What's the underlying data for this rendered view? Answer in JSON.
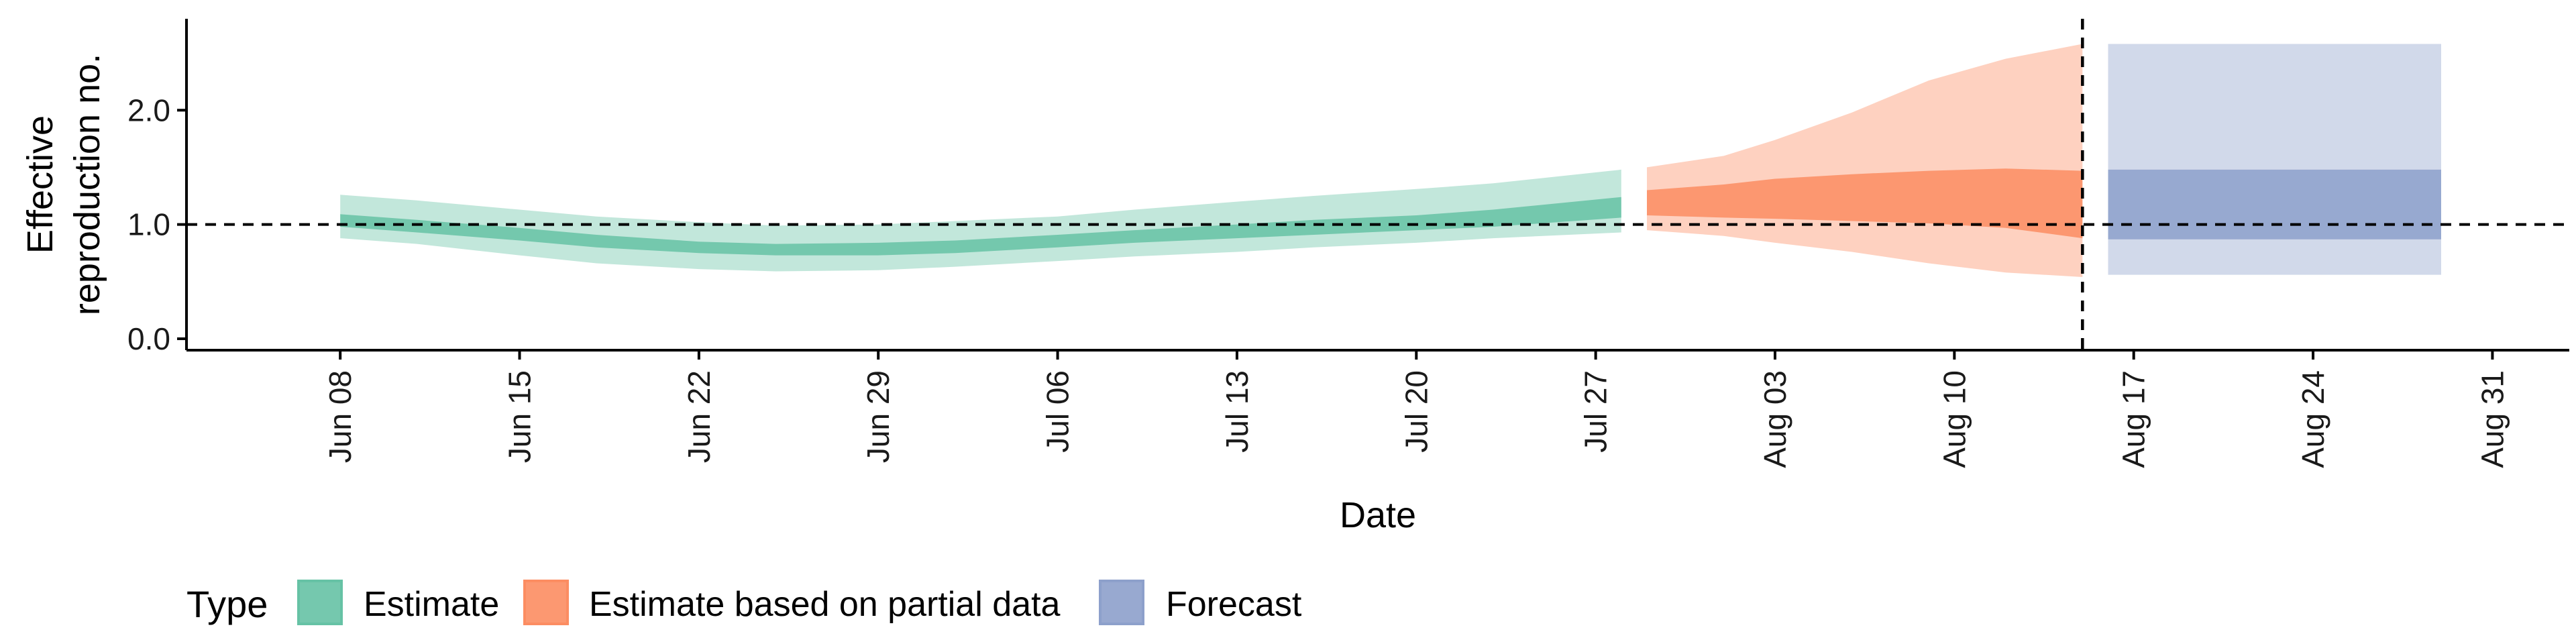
{
  "chart_data": {
    "type": "area",
    "title": "",
    "xlabel": "Date",
    "ylabel_lines": [
      "Effective",
      "reproduction no."
    ],
    "xlim": [
      "2020-06-02",
      "2020-09-03"
    ],
    "ylim": [
      -0.1,
      2.8
    ],
    "x_ticks": [
      "2020-06-08",
      "2020-06-15",
      "2020-06-22",
      "2020-06-29",
      "2020-07-06",
      "2020-07-13",
      "2020-07-20",
      "2020-07-27",
      "2020-08-03",
      "2020-08-10",
      "2020-08-17",
      "2020-08-24",
      "2020-08-31"
    ],
    "x_tick_labels": [
      "Jun 08",
      "Jun 15",
      "Jun 22",
      "Jun 29",
      "Jul 06",
      "Jul 13",
      "Jul 20",
      "Jul 27",
      "Aug 03",
      "Aug 10",
      "Aug 17",
      "Aug 24",
      "Aug 31"
    ],
    "y_ticks": [
      0.0,
      1.0,
      2.0
    ],
    "y_tick_labels": [
      "0.0",
      "1.0",
      "2.0"
    ],
    "reference_line": {
      "y": 1.0,
      "style": "dashed"
    },
    "vertical_line": {
      "x": "2020-08-15",
      "style": "dashed"
    },
    "series": [
      {
        "name": "Estimate",
        "color": "#66c2a5",
        "x": [
          "2020-06-08",
          "2020-06-11",
          "2020-06-15",
          "2020-06-18",
          "2020-06-22",
          "2020-06-25",
          "2020-06-29",
          "2020-07-02",
          "2020-07-06",
          "2020-07-09",
          "2020-07-13",
          "2020-07-16",
          "2020-07-20",
          "2020-07-23",
          "2020-07-28"
        ],
        "upper90": [
          1.26,
          1.21,
          1.13,
          1.07,
          1.02,
          0.99,
          1.0,
          1.03,
          1.07,
          1.13,
          1.2,
          1.25,
          1.31,
          1.36,
          1.48
        ],
        "upper50": [
          1.09,
          1.04,
          0.97,
          0.91,
          0.85,
          0.83,
          0.84,
          0.86,
          0.91,
          0.95,
          1.0,
          1.04,
          1.08,
          1.13,
          1.24
        ],
        "lower50": [
          0.98,
          0.93,
          0.86,
          0.8,
          0.75,
          0.73,
          0.73,
          0.75,
          0.8,
          0.84,
          0.88,
          0.91,
          0.95,
          0.98,
          1.06
        ],
        "lower90": [
          0.88,
          0.83,
          0.73,
          0.66,
          0.61,
          0.59,
          0.6,
          0.63,
          0.68,
          0.72,
          0.76,
          0.8,
          0.84,
          0.88,
          0.93
        ]
      },
      {
        "name": "Estimate based on partial data",
        "color": "#fc8d62",
        "x": [
          "2020-07-29",
          "2020-08-01",
          "2020-08-03",
          "2020-08-06",
          "2020-08-09",
          "2020-08-12",
          "2020-08-15"
        ],
        "upper90": [
          1.5,
          1.6,
          1.74,
          1.98,
          2.26,
          2.45,
          2.58
        ],
        "upper50": [
          1.3,
          1.35,
          1.4,
          1.44,
          1.47,
          1.49,
          1.47
        ],
        "lower50": [
          1.08,
          1.06,
          1.05,
          1.03,
          1.01,
          0.97,
          0.88
        ],
        "lower90": [
          0.95,
          0.9,
          0.84,
          0.76,
          0.66,
          0.58,
          0.54
        ]
      },
      {
        "name": "Forecast",
        "color": "#8da0cb",
        "x": [
          "2020-08-16",
          "2020-08-29"
        ],
        "upper90": [
          2.58,
          2.58
        ],
        "upper50": [
          1.48,
          1.48
        ],
        "lower50": [
          0.87,
          0.87
        ],
        "lower90": [
          0.56,
          0.56
        ]
      }
    ],
    "legend": {
      "title": "Type",
      "position": "bottom-left",
      "items": [
        "Estimate",
        "Estimate based on partial data",
        "Forecast"
      ]
    },
    "grid": false
  }
}
